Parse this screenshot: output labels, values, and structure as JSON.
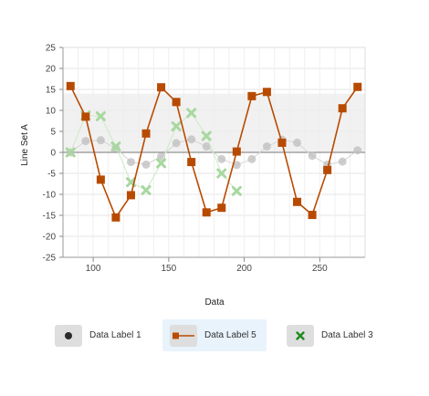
{
  "chart_data": {
    "type": "line",
    "title": "",
    "xlabel": "Data",
    "ylabel": "Line Set A",
    "xlim": [
      80,
      280
    ],
    "ylim": [
      -25,
      25
    ],
    "x_ticks": [
      100,
      150,
      200,
      250
    ],
    "y_ticks": [
      25,
      20,
      15,
      10,
      5,
      0,
      -5,
      -10,
      -15,
      -20,
      -25
    ],
    "x_tick_labels": [
      "100",
      "150",
      "200",
      "250"
    ],
    "y_tick_labels": [
      "25",
      "20",
      "15",
      "10",
      "5",
      "0",
      "-5",
      "-10",
      "-15",
      "-20",
      "-25"
    ],
    "grid": true,
    "reference_band": {
      "y_from": 0,
      "y_to": 14
    },
    "series": [
      {
        "name": "Data Label 1",
        "marker": "circle",
        "color": "#bdbdbd",
        "x": [
          85,
          95,
          105,
          115,
          125,
          135,
          145,
          155,
          165,
          175,
          185,
          195,
          205,
          215,
          225,
          235,
          245,
          255,
          265,
          275
        ],
        "y": [
          0,
          2.7,
          2.9,
          1.0,
          -2.3,
          -2.9,
          -1.0,
          2.2,
          3.1,
          1.4,
          -1.6,
          -3.0,
          -1.6,
          1.4,
          3.0,
          2.3,
          -0.8,
          -2.9,
          -2.2,
          0.5
        ]
      },
      {
        "name": "Data Label 5",
        "marker": "square",
        "color": "#b84a00",
        "x": [
          85,
          95,
          105,
          115,
          125,
          135,
          145,
          155,
          165,
          175,
          185,
          195,
          205,
          215,
          225,
          235,
          245,
          255,
          265,
          275
        ],
        "y": [
          15.8,
          8.5,
          -6.5,
          -15.5,
          -10.2,
          4.5,
          15.5,
          12.0,
          -2.3,
          -14.3,
          -13.2,
          0.2,
          13.4,
          14.4,
          2.3,
          -11.8,
          -14.9,
          -4.2,
          10.5,
          15.6
        ]
      },
      {
        "name": "Data Label 3",
        "marker": "cross",
        "color": "#a8d8a0",
        "x": [
          85,
          95,
          105,
          115,
          125,
          135,
          145,
          155,
          165,
          175,
          185,
          195
        ],
        "y": [
          0,
          8.8,
          8.6,
          1.4,
          -7.1,
          -9.0,
          -2.6,
          6.2,
          9.4,
          3.9,
          -5.0,
          -9.2
        ]
      }
    ]
  },
  "legend": {
    "items": [
      {
        "label": "Data Label 1",
        "icon": "circle-icon"
      },
      {
        "label": "Data Label 5",
        "icon": "square-line-icon"
      },
      {
        "label": "Data Label 3",
        "icon": "cross-icon"
      }
    ]
  }
}
